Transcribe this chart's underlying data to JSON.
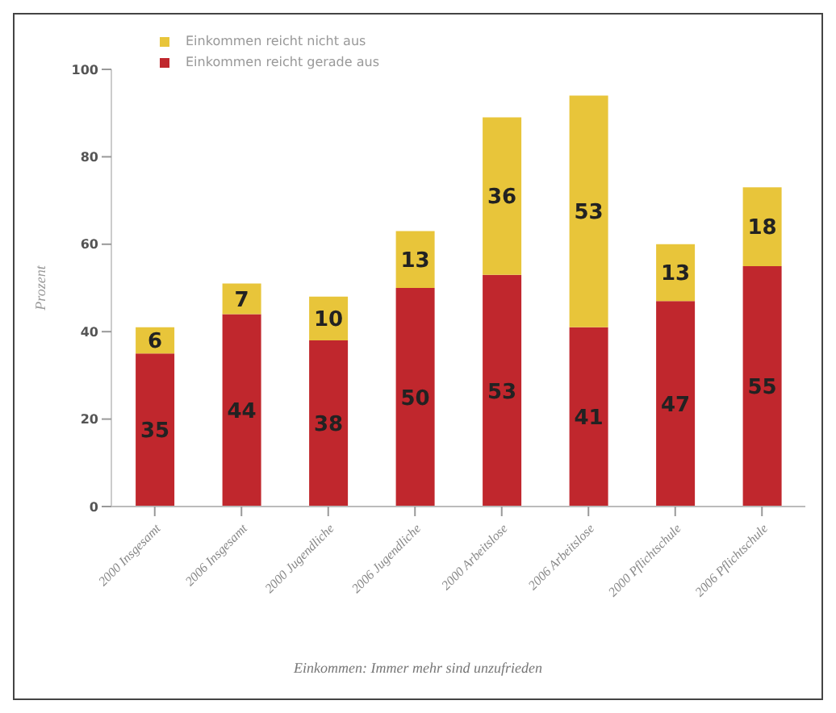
{
  "chart_data": {
    "type": "bar",
    "title": "Einkommen: Immer mehr sind unzufrieden",
    "ylabel": "Prozent",
    "categories": [
      "2000 Insgesamt",
      "2006 Insgesamt",
      "2000 Jugendliche",
      "2006 Jugendliche",
      "2000 Arbeitslose",
      "2006 Arbeitslose",
      "2000 Pflichtschule",
      "2006 Pflichtschule"
    ],
    "series": [
      {
        "name": "Einkommen reicht gerade aus",
        "color": "#c0272d",
        "values": [
          35,
          44,
          38,
          50,
          53,
          41,
          47,
          55
        ]
      },
      {
        "name": "Einkommen reicht nicht aus",
        "color": "#e8c53a",
        "values": [
          6,
          7,
          10,
          13,
          36,
          53,
          13,
          18
        ]
      }
    ],
    "stacked": true,
    "data_labels": true,
    "legend": "top left",
    "grid": false,
    "ylim": [
      0,
      100
    ],
    "yticks": [
      0,
      20,
      40,
      60,
      80,
      100
    ]
  }
}
